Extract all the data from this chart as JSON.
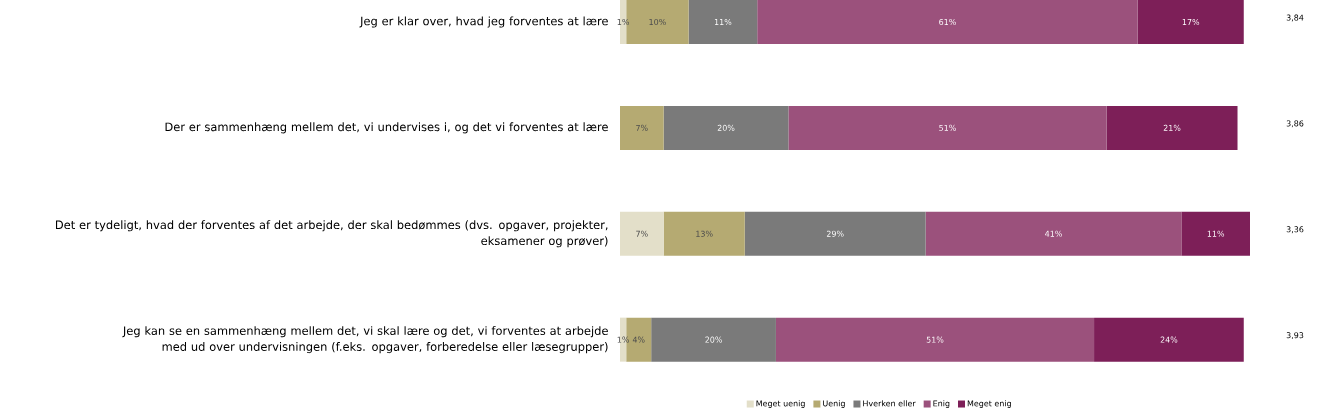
{
  "chart_data": {
    "type": "bar",
    "orientation": "horizontal",
    "stacked": true,
    "legend": "bottom",
    "categories": [
      "Jeg er klar over, hvad jeg forventes at lære",
      "Der er sammenhæng mellem det, vi undervises i, og det vi forventes at lære",
      "Det er tydeligt, hvad der forventes af det arbejde, der skal bedømmes (dvs. opgaver, projekter, eksamener og prøver)",
      "Jeg kan se en sammenhæng mellem det, vi skal lære og det, vi forventes at arbejde med ud over undervisningen (f.eks. opgaver, forberedelse eller læsegrupper)"
    ],
    "series": [
      {
        "name": "Meget uenig",
        "color": "#e3dfc9",
        "values": [
          1,
          0,
          7,
          1
        ],
        "value_labels": [
          "1%",
          null,
          "7%",
          "1%"
        ]
      },
      {
        "name": "Uenig",
        "color": "#b5aa72",
        "values": [
          10,
          7,
          13,
          4
        ],
        "value_labels": [
          "10%",
          "7%",
          "13%",
          "4%"
        ]
      },
      {
        "name": "Hverken eller",
        "color": "#7a7a7a",
        "values": [
          11,
          20,
          29,
          20
        ],
        "value_labels": [
          "11%",
          "20%",
          "29%",
          "20%"
        ]
      },
      {
        "name": "Enig",
        "color": "#9b517c",
        "values": [
          61,
          51,
          41,
          51
        ],
        "value_labels": [
          "61%",
          "51%",
          "41%",
          "51%"
        ]
      },
      {
        "name": "Meget enig",
        "color": "#7d1f58",
        "values": [
          17,
          21,
          11,
          24
        ],
        "value_labels": [
          "17%",
          "21%",
          "11%",
          "24%"
        ]
      }
    ],
    "annotations": [
      "3,84",
      "3,86",
      "3,36",
      "3,93"
    ]
  }
}
